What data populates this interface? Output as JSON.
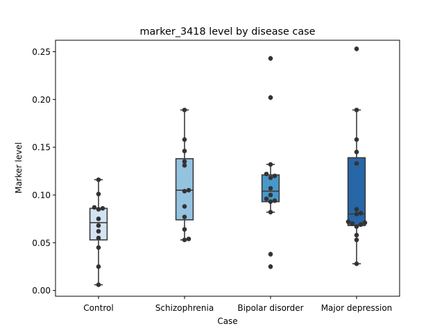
{
  "chart_data": {
    "type": "box",
    "title": "marker_3418 level by disease case",
    "xlabel": "Case",
    "ylabel": "Marker level",
    "ylim": [
      -0.006,
      0.262
    ],
    "yticks": [
      0.0,
      0.05,
      0.1,
      0.15,
      0.2,
      0.25
    ],
    "ytick_labels": [
      "0.00",
      "0.05",
      "0.10",
      "0.15",
      "0.20",
      "0.25"
    ],
    "grid": false,
    "categories": [
      "Control",
      "Schizophrenia",
      "Bipolar disorder",
      "Major depression"
    ],
    "colors": [
      "#d3e3f2",
      "#94c3df",
      "#4a97c9",
      "#2766a7"
    ],
    "boxes": [
      {
        "q1": 0.053,
        "median": 0.071,
        "q3": 0.086,
        "whisker_low": 0.006,
        "whisker_high": 0.116,
        "outliers": []
      },
      {
        "q1": 0.074,
        "median": 0.105,
        "q3": 0.138,
        "whisker_low": 0.053,
        "whisker_high": 0.189,
        "outliers": []
      },
      {
        "q1": 0.093,
        "median": 0.104,
        "q3": 0.121,
        "whisker_low": 0.082,
        "whisker_high": 0.132,
        "outliers": [
          0.243,
          0.202,
          0.038,
          0.025
        ]
      },
      {
        "q1": 0.068,
        "median": 0.08,
        "q3": 0.139,
        "whisker_low": 0.028,
        "whisker_high": 0.189,
        "outliers": [
          0.253
        ]
      }
    ],
    "points": [
      [
        0.006,
        0.025,
        0.045,
        0.055,
        0.062,
        0.068,
        0.075,
        0.085,
        0.086,
        0.087,
        0.101,
        0.116
      ],
      [
        0.053,
        0.054,
        0.064,
        0.077,
        0.088,
        0.104,
        0.105,
        0.131,
        0.135,
        0.146,
        0.158,
        0.189
      ],
      [
        0.025,
        0.038,
        0.082,
        0.093,
        0.094,
        0.096,
        0.1,
        0.107,
        0.118,
        0.12,
        0.122,
        0.132,
        0.202,
        0.243
      ],
      [
        0.028,
        0.053,
        0.058,
        0.067,
        0.069,
        0.07,
        0.071,
        0.072,
        0.08,
        0.081,
        0.085,
        0.133,
        0.145,
        0.158,
        0.189,
        0.253
      ]
    ]
  }
}
